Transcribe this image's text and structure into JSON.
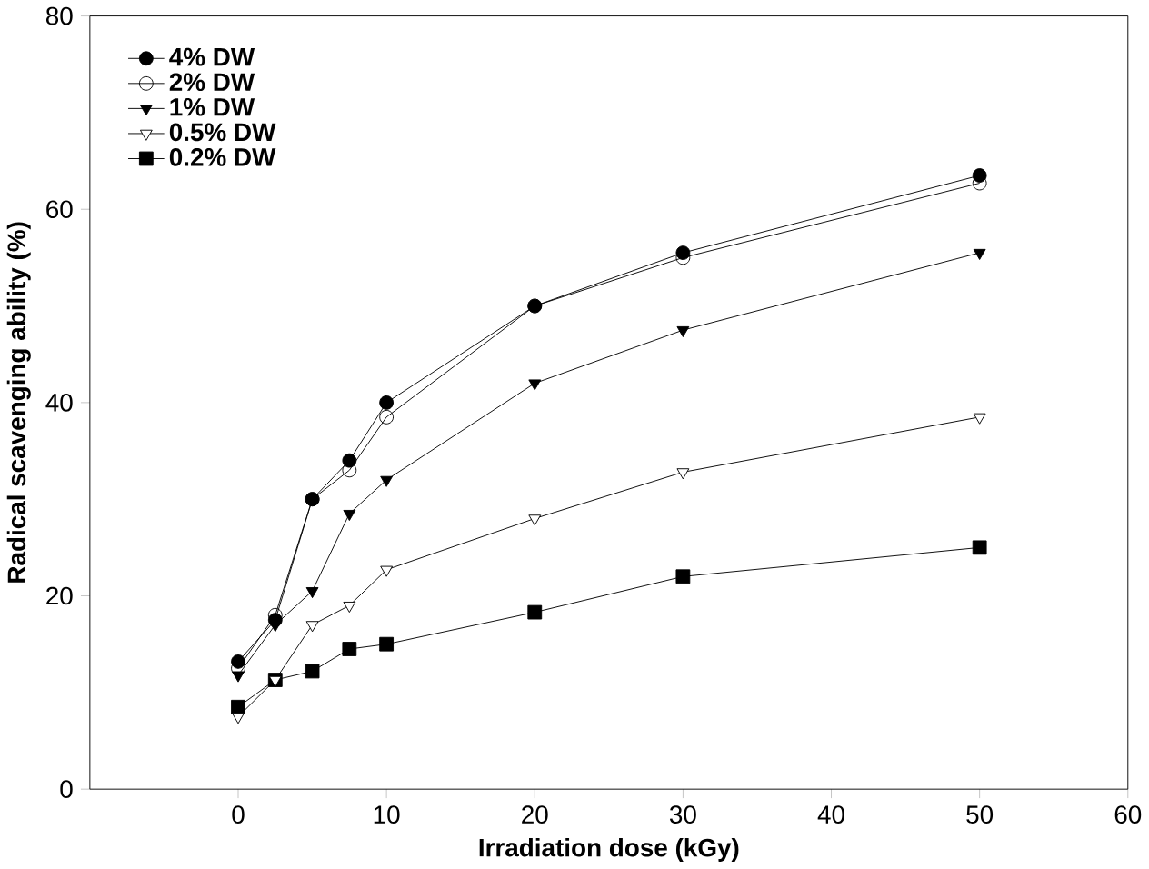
{
  "chart_data": {
    "type": "line",
    "xlabel": "Irradiation dose (kGy)",
    "ylabel": "Radical scavenging ability (%)",
    "xlim": [
      -10,
      60
    ],
    "xticks": [
      0,
      10,
      20,
      30,
      40,
      50,
      60
    ],
    "ylim": [
      0,
      80
    ],
    "yticks": [
      0,
      20,
      40,
      60,
      80
    ],
    "x": [
      0,
      2.5,
      5,
      7.5,
      10,
      20,
      30,
      50
    ],
    "legend": "top left",
    "grid": false,
    "series": [
      {
        "name": "4% DW",
        "color": "#000000",
        "marker": "circle",
        "values": [
          13.2,
          17.5,
          30,
          34,
          40,
          50,
          55.5,
          63.5
        ]
      },
      {
        "name": "2% DW",
        "color": "#000000",
        "marker": "circle open",
        "values": [
          12.5,
          18,
          30,
          33,
          38.5,
          50,
          55,
          62.7
        ]
      },
      {
        "name": "1% DW",
        "color": "#000000",
        "marker": "triangle down",
        "values": [
          11.8,
          17,
          20.5,
          28.5,
          32,
          42,
          47.5,
          55.5
        ]
      },
      {
        "name": "0.5% DW",
        "color": "#000000",
        "marker": "triangle down open",
        "values": [
          7.5,
          11.3,
          17,
          19,
          22.7,
          28,
          32.8,
          38.5
        ]
      },
      {
        "name": "0.2% DW",
        "color": "#000000",
        "marker": "square",
        "values": [
          8.5,
          11.3,
          12.2,
          14.5,
          15,
          18.3,
          22,
          25
        ]
      }
    ]
  }
}
